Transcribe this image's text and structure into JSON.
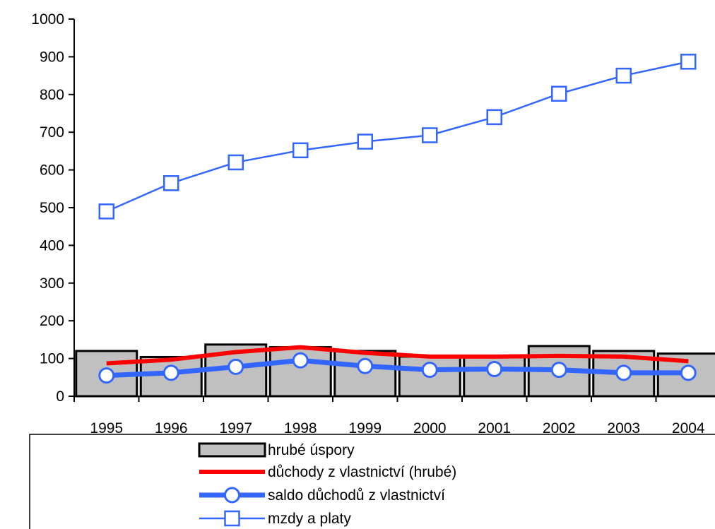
{
  "chart_data": {
    "type": "bar",
    "categories": [
      "1995",
      "1996",
      "1997",
      "1998",
      "1999",
      "2000",
      "2001",
      "2002",
      "2003",
      "2004"
    ],
    "ylim": [
      0,
      1000
    ],
    "yticks": [
      0,
      100,
      200,
      300,
      400,
      500,
      600,
      700,
      800,
      900,
      1000
    ],
    "grid": false,
    "legend_position": "bottom",
    "series": [
      {
        "name": "hrubé úspory",
        "kind": "bar",
        "color": "#c0c0c0",
        "values": [
          120,
          104,
          137,
          130,
          120,
          105,
          103,
          133,
          120,
          113
        ]
      },
      {
        "name": "důchody z vlastnictví (hrubé)",
        "kind": "line",
        "color": "#ff0000",
        "values": [
          87,
          97,
          117,
          130,
          115,
          105,
          105,
          107,
          105,
          93
        ]
      },
      {
        "name": "saldo důchodů z vlastnictví",
        "kind": "line-circle",
        "color": "#3366ff",
        "values": [
          55,
          62,
          78,
          95,
          80,
          70,
          72,
          70,
          62,
          62
        ]
      },
      {
        "name": "mzdy a platy",
        "kind": "line-square",
        "color": "#3366ff",
        "values": [
          490,
          565,
          620,
          652,
          675,
          692,
          740,
          802,
          850,
          887
        ]
      }
    ]
  }
}
